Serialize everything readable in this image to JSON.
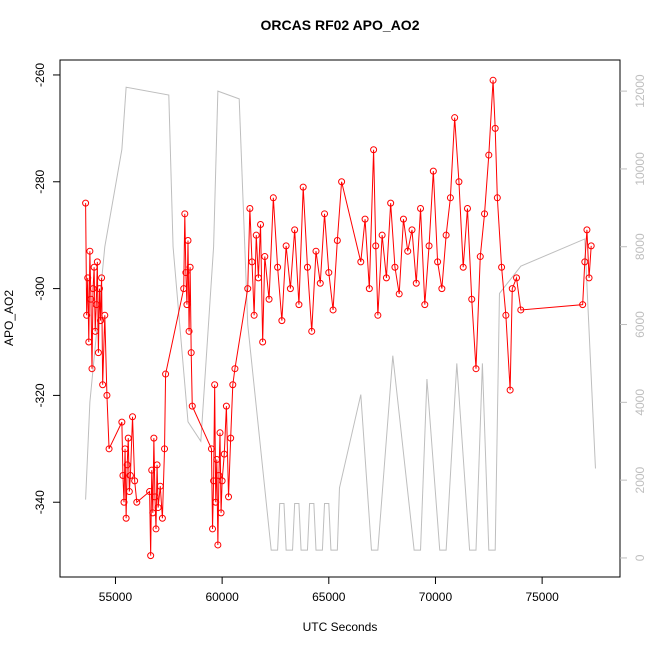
{
  "chart_data": {
    "type": "line",
    "title": "ORCAS RF02 APO_AO2",
    "xlabel": "UTC Seconds",
    "ylabel": "APO_AO2",
    "xlim": [
      52400,
      78650
    ],
    "ylim": [
      -354,
      -257.2
    ],
    "y2lim": [
      -490,
      12800
    ],
    "xticks": [
      55000,
      60000,
      65000,
      70000,
      75000
    ],
    "yticks": [
      -260,
      -280,
      -300,
      -320,
      -340
    ],
    "y2ticks": [
      0,
      2000,
      4000,
      6000,
      8000,
      10000,
      12000
    ],
    "series": [
      {
        "color": "#bebebe",
        "axis": "y2",
        "x": [
          53600,
          53800,
          54500,
          55300,
          55500,
          57500,
          57700,
          58400,
          59000,
          59600,
          59800,
          60800,
          61200,
          62300,
          62600,
          62700,
          62900,
          63000,
          63300,
          63400,
          63600,
          63700,
          64000,
          64100,
          64300,
          64400,
          64700,
          64800,
          65000,
          65100,
          65400,
          65500,
          66500,
          67000,
          67300,
          68000,
          69000,
          69300,
          69600,
          70200,
          70500,
          71000,
          71600,
          71900,
          72200,
          72500,
          72800,
          73000,
          74000,
          77000,
          77500
        ],
        "values": [
          1500,
          4000,
          8000,
          10500,
          12100,
          11900,
          8000,
          3500,
          3000,
          8000,
          12000,
          11800,
          6000,
          200,
          200,
          1400,
          1400,
          200,
          200,
          1400,
          1400,
          200,
          200,
          1400,
          1400,
          200,
          200,
          1400,
          1400,
          200,
          200,
          1800,
          4200,
          200,
          200,
          5200,
          200,
          200,
          4600,
          200,
          200,
          5000,
          200,
          200,
          5000,
          200,
          200,
          6800,
          7500,
          8200,
          2300
        ]
      },
      {
        "color": "#ff0000",
        "axis": "y",
        "x": [
          53600,
          53650,
          53700,
          53750,
          53800,
          53850,
          53900,
          53950,
          54000,
          54050,
          54100,
          54150,
          54200,
          54250,
          54300,
          54350,
          54400,
          54500,
          54600,
          54700,
          55300,
          55350,
          55400,
          55450,
          55500,
          55550,
          55600,
          55650,
          55700,
          55800,
          55900,
          56000,
          56600,
          56650,
          56700,
          56750,
          56800,
          56850,
          56900,
          56950,
          57000,
          57100,
          57200,
          57300,
          57350,
          58200,
          58250,
          58300,
          58350,
          58400,
          58450,
          58500,
          58550,
          58600,
          59500,
          59550,
          59600,
          59650,
          59700,
          59750,
          59800,
          59850,
          59900,
          59950,
          60000,
          60100,
          60200,
          60300,
          60400,
          60500,
          60600,
          61200,
          61300,
          61400,
          61500,
          61600,
          61700,
          61800,
          61900,
          62000,
          62200,
          62400,
          62600,
          62800,
          63000,
          63200,
          63400,
          63600,
          63800,
          64000,
          64200,
          64400,
          64600,
          64800,
          65000,
          65200,
          65400,
          65600,
          66500,
          66700,
          66900,
          67100,
          67200,
          67300,
          67500,
          67700,
          67900,
          68100,
          68300,
          68500,
          68700,
          68900,
          69100,
          69300,
          69500,
          69700,
          69900,
          70100,
          70300,
          70500,
          70700,
          70900,
          71100,
          71300,
          71500,
          71700,
          71900,
          72100,
          72300,
          72500,
          72700,
          72800,
          72900,
          73100,
          73300,
          73500,
          73600,
          73800,
          74000,
          76900,
          77000,
          77100,
          77200,
          77300
        ],
        "values": [
          -284,
          -305,
          -298,
          -310,
          -293,
          -302,
          -315,
          -300,
          -296,
          -308,
          -303,
          -295,
          -312,
          -300,
          -306,
          -298,
          -318,
          -305,
          -320,
          -330,
          -325,
          -335,
          -340,
          -330,
          -343,
          -333,
          -328,
          -338,
          -335,
          -324,
          -336,
          -340,
          -338,
          -350,
          -334,
          -342,
          -328,
          -339,
          -345,
          -333,
          -341,
          -337,
          -343,
          -330,
          -316,
          -300,
          -286,
          -297,
          -303,
          -291,
          -308,
          -296,
          -312,
          -322,
          -330,
          -345,
          -336,
          -318,
          -340,
          -332,
          -348,
          -335,
          -327,
          -342,
          -336,
          -331,
          -322,
          -339,
          -328,
          -318,
          -315,
          -300,
          -285,
          -295,
          -305,
          -290,
          -298,
          -288,
          -310,
          -294,
          -302,
          -283,
          -296,
          -306,
          -292,
          -300,
          -289,
          -303,
          -281,
          -296,
          -308,
          -293,
          -299,
          -286,
          -297,
          -304,
          -291,
          -280,
          -295,
          -287,
          -300,
          -274,
          -292,
          -305,
          -290,
          -298,
          -284,
          -296,
          -301,
          -287,
          -293,
          -289,
          -299,
          -285,
          -303,
          -292,
          -278,
          -295,
          -300,
          -290,
          -283,
          -268,
          -280,
          -296,
          -285,
          -302,
          -315,
          -294,
          -286,
          -275,
          -261,
          -270,
          -283,
          -296,
          -305,
          -319,
          -300,
          -298,
          -304,
          -303,
          -295,
          -289,
          -298,
          -292
        ]
      }
    ]
  }
}
